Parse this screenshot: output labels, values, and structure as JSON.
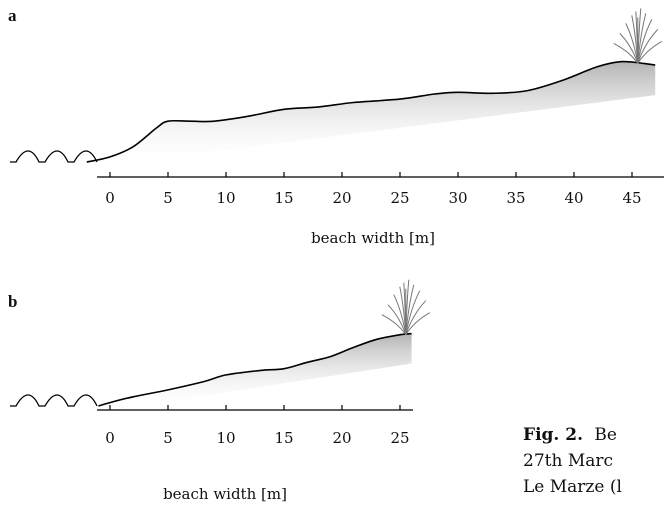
{
  "figure": {
    "panels": [
      {
        "label": "a",
        "axis_title": "beach width [m]",
        "ticks": [
          0,
          5,
          10,
          15,
          20,
          25,
          30,
          35,
          40,
          45
        ],
        "profile": [
          [
            -2,
            0.0
          ],
          [
            0,
            0.15
          ],
          [
            2,
            0.45
          ],
          [
            4,
            1.0
          ],
          [
            5,
            1.2
          ],
          [
            7,
            1.2
          ],
          [
            9,
            1.2
          ],
          [
            12,
            1.35
          ],
          [
            15,
            1.55
          ],
          [
            18,
            1.62
          ],
          [
            21,
            1.75
          ],
          [
            25,
            1.85
          ],
          [
            28,
            2.0
          ],
          [
            30,
            2.05
          ],
          [
            33,
            2.02
          ],
          [
            36,
            2.1
          ],
          [
            39,
            2.4
          ],
          [
            42,
            2.8
          ],
          [
            44,
            2.95
          ],
          [
            46,
            2.9
          ],
          [
            47,
            2.85
          ]
        ],
        "vegetation_at_m": 45.5
      },
      {
        "label": "b",
        "axis_title": "beach width [m]",
        "ticks": [
          0,
          5,
          10,
          15,
          20,
          25
        ],
        "profile": [
          [
            -1,
            0.0
          ],
          [
            0,
            0.15
          ],
          [
            2,
            0.4
          ],
          [
            5,
            0.7
          ],
          [
            8,
            1.05
          ],
          [
            10,
            1.35
          ],
          [
            13,
            1.55
          ],
          [
            15,
            1.62
          ],
          [
            17,
            1.9
          ],
          [
            19,
            2.15
          ],
          [
            21,
            2.55
          ],
          [
            23,
            2.9
          ],
          [
            25,
            3.1
          ],
          [
            26,
            3.15
          ]
        ],
        "vegetation_at_m": 25.5
      }
    ],
    "caption": {
      "bold": "Fig.  2.",
      "lines": [
        "Be",
        "27th  Marc",
        "Le Marze (l"
      ]
    }
  }
}
